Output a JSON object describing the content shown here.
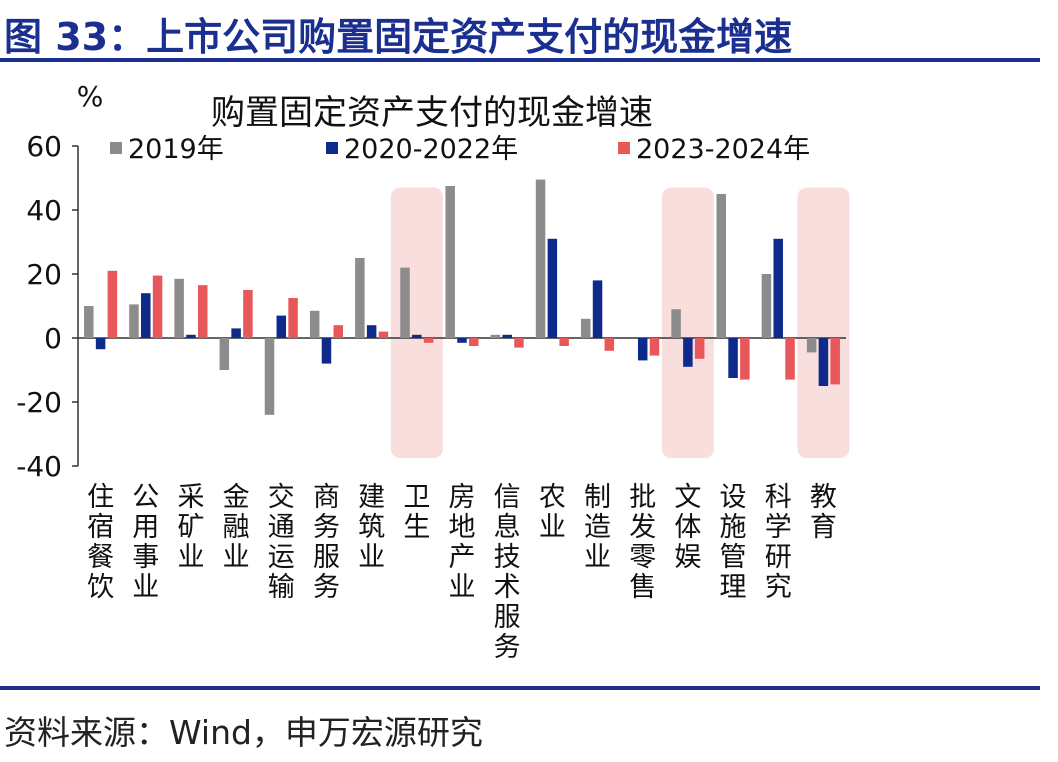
{
  "figure_title": "图 33：上市公司购置固定资产支付的现金增速",
  "source": "资料来源：Wind，申万宏源研究",
  "chart_data": {
    "type": "bar",
    "title": "购置固定资产支付的现金增速",
    "ylabel": "%",
    "xlabel": "",
    "ylim": [
      -40,
      60
    ],
    "yticks": [
      -40,
      -20,
      0,
      20,
      40,
      60
    ],
    "legend_position": "top",
    "grid": false,
    "categories": [
      "住宿餐饮",
      "公用事业",
      "采矿业",
      "金融业",
      "交通运输",
      "商务服务",
      "建筑业",
      "卫生",
      "房地产业",
      "信息技术服务",
      "农业",
      "制造业",
      "批发零售",
      "文体娱",
      "设施管理",
      "科学研究",
      "教育"
    ],
    "highlighted_categories": [
      "卫生",
      "文体娱",
      "教育"
    ],
    "highlight_color": "#f9dede",
    "series": [
      {
        "name": "2019年",
        "color": "#8c8c8c",
        "values": [
          10,
          10.5,
          18.5,
          -10,
          -24,
          8.5,
          25,
          22,
          47.5,
          1,
          49.5,
          6,
          0,
          9,
          45,
          20,
          -4.5
        ]
      },
      {
        "name": "2020-2022年",
        "color": "#0e2a8a",
        "values": [
          -3.5,
          14,
          1,
          3,
          7,
          -8,
          4,
          1,
          -1.5,
          1,
          31,
          18,
          -7,
          -9,
          -12.5,
          31,
          -15
        ]
      },
      {
        "name": "2023-2024年",
        "color": "#e8585a",
        "values": [
          21,
          19.5,
          16.5,
          15,
          12.5,
          4,
          2,
          -1.5,
          -2.5,
          -3,
          -2.5,
          -4,
          -5.5,
          -6.5,
          -13,
          -13,
          -14.5
        ]
      }
    ]
  }
}
